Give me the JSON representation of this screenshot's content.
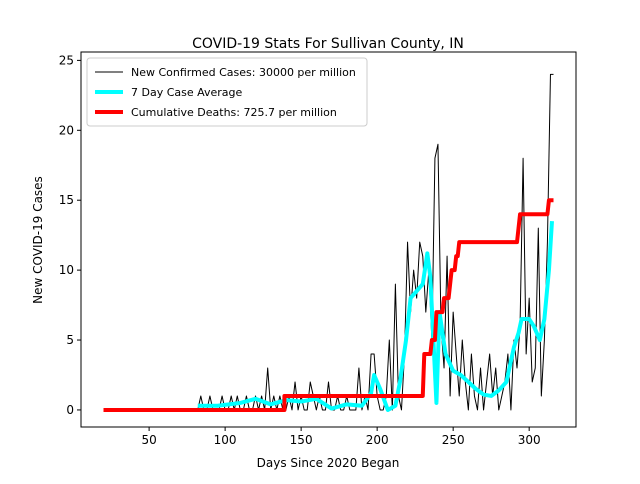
{
  "chart_data": {
    "type": "line",
    "title": "COVID-19 Stats For Sullivan County, IN",
    "xlabel": "Days Since 2020 Began",
    "ylabel": "New COVID-19 Cases",
    "xlim": [
      5.2,
      330.8
    ],
    "ylim": [
      -1.22,
      25.6
    ],
    "xticks": [
      50,
      100,
      150,
      200,
      250,
      300
    ],
    "yticks": [
      0,
      5,
      10,
      15,
      20,
      25
    ],
    "legend": "upper left",
    "series": [
      {
        "name": "New Confirmed Cases: 30000 per million",
        "color": "#000000",
        "width": 1,
        "x": [
          82,
          84,
          86,
          88,
          90,
          92,
          94,
          96,
          98,
          100,
          102,
          104,
          106,
          108,
          110,
          112,
          114,
          116,
          118,
          120,
          122,
          124,
          126,
          128,
          130,
          132,
          134,
          136,
          138,
          140,
          142,
          144,
          146,
          148,
          150,
          152,
          154,
          156,
          158,
          160,
          162,
          164,
          166,
          168,
          170,
          172,
          174,
          176,
          178,
          180,
          182,
          184,
          186,
          188,
          190,
          192,
          194,
          196,
          198,
          200,
          202,
          204,
          206,
          208,
          210,
          212,
          214,
          216,
          218,
          220,
          222,
          224,
          226,
          228,
          230,
          232,
          234,
          236,
          238,
          240,
          242,
          244,
          246,
          248,
          250,
          252,
          254,
          256,
          258,
          260,
          262,
          264,
          266,
          268,
          270,
          272,
          274,
          276,
          278,
          280,
          282,
          284,
          286,
          288,
          290,
          292,
          294,
          296,
          298,
          300,
          302,
          304,
          306,
          308,
          310,
          312,
          314,
          316
        ],
        "values": [
          0,
          1,
          0,
          0,
          1,
          0,
          0,
          0,
          1,
          0,
          0,
          1,
          0,
          1,
          0,
          0,
          1,
          0,
          0,
          1,
          0,
          1,
          0,
          3,
          0,
          1,
          0,
          1,
          0,
          0,
          1,
          0,
          2,
          0,
          1,
          0,
          0,
          2,
          1,
          0,
          1,
          0,
          0,
          2,
          0,
          0,
          1,
          0,
          0,
          1,
          0,
          0,
          0,
          3,
          0,
          1,
          0,
          4,
          4,
          1,
          0,
          0,
          1,
          5,
          0,
          9,
          1,
          0,
          4,
          12,
          7,
          10,
          8,
          12,
          11,
          7,
          10,
          5,
          18,
          19,
          6,
          3,
          11,
          1,
          7,
          4,
          1,
          5,
          2,
          0,
          4,
          1,
          0,
          3,
          0,
          2,
          4,
          1,
          3,
          0,
          1,
          2,
          4,
          0,
          5,
          3,
          6,
          18,
          4,
          8,
          2,
          3,
          13,
          1,
          5,
          12,
          24,
          24
        ]
      },
      {
        "name": "7 Day Case Average",
        "color": "#00ffff",
        "width": 4,
        "x": [
          82,
          95,
          110,
          120,
          130,
          140,
          150,
          160,
          170,
          180,
          190,
          196,
          198,
          202,
          207,
          212,
          215,
          219,
          222,
          226,
          230,
          233,
          235,
          237,
          239,
          241,
          245,
          250,
          255,
          260,
          265,
          270,
          275,
          280,
          285,
          288,
          290,
          293,
          295,
          300,
          303,
          307,
          310,
          313,
          315
        ],
        "values": [
          0.3,
          0.3,
          0.5,
          0.8,
          0.4,
          0.7,
          0.6,
          0.8,
          0.1,
          0.4,
          0.3,
          1.2,
          2.5,
          1.5,
          0,
          0.3,
          2,
          5,
          8,
          8.5,
          9,
          11.2,
          9.5,
          5,
          0.5,
          7,
          4,
          2.8,
          2.5,
          2,
          1.5,
          1.1,
          1,
          1.4,
          2,
          3.5,
          4.5,
          5.5,
          6.5,
          6.5,
          6,
          5,
          6.5,
          10,
          13.5
        ]
      },
      {
        "name": "Cumulative Deaths: 725.7 per million",
        "color": "#ff0000",
        "width": 4,
        "x": [
          20,
          139,
          139,
          230,
          231,
          235,
          236,
          238,
          239,
          243,
          244,
          247,
          248,
          249,
          251,
          252,
          253,
          254,
          292,
          293,
          294,
          312,
          313,
          316
        ],
        "values": [
          0,
          0,
          1,
          1,
          4,
          4,
          5,
          5,
          7,
          7,
          8,
          8,
          9,
          10,
          10,
          11,
          11,
          12,
          12,
          13,
          14,
          14,
          15,
          15
        ]
      }
    ]
  }
}
